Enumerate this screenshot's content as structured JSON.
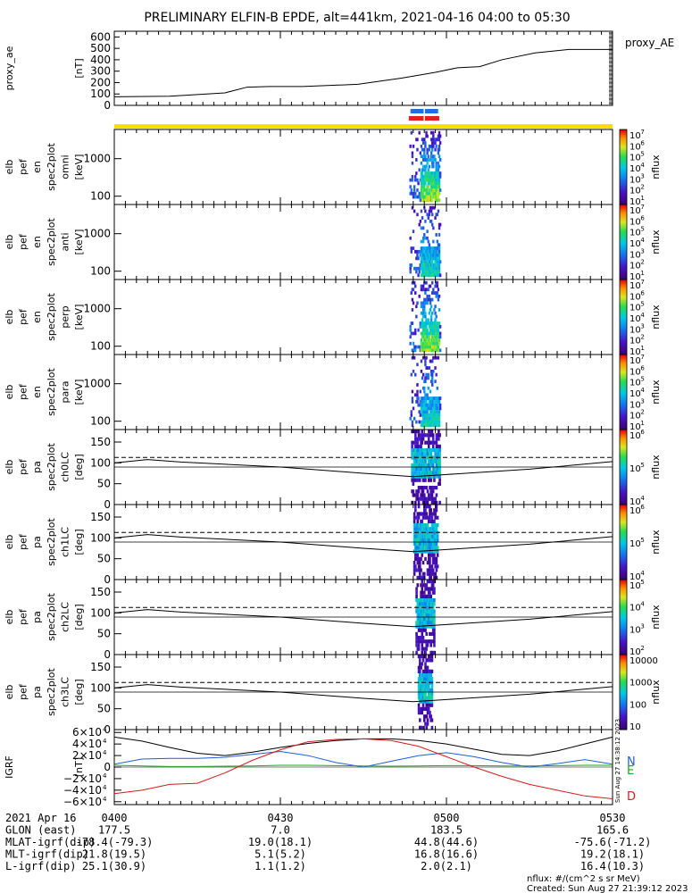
{
  "title": "PRELIMINARY ELFIN-B EPDE, alt=441km, 2021-04-16 04:00 to 05:30",
  "colors": {
    "ae_line": "#000000",
    "sci_blue": "#1e6ee6",
    "sci_red": "#e61e1e",
    "orbit_yellow": "#ffdd00",
    "grf_north": "#1f5fd6",
    "grf_east": "#1aa81a",
    "grf_down": "#d71a1a"
  },
  "chart_data": [
    {
      "type": "line",
      "name": "proxy_ae",
      "title": "proxy_AE",
      "ylabel": [
        "proxy_ae",
        "[nT]"
      ],
      "ylim": [
        0,
        650
      ],
      "yticks": [
        0,
        100,
        200,
        300,
        400,
        500,
        600
      ],
      "ytick_labels": [
        "0",
        "100",
        "200",
        "300",
        "400",
        "500",
        "600"
      ],
      "x_minutes": [
        0,
        10,
        20,
        24,
        28,
        34,
        44,
        52,
        58,
        62,
        66,
        70,
        76,
        82,
        90
      ],
      "values": [
        75,
        80,
        110,
        160,
        165,
        165,
        185,
        240,
        290,
        330,
        340,
        400,
        460,
        490,
        490
      ]
    },
    {
      "type": "bar",
      "name": "science_zone_bars",
      "categories": [
        "blue",
        "red"
      ],
      "x_minutes": [
        [
          53.5,
          58.5
        ],
        [
          53.2,
          58.7
        ]
      ]
    },
    {
      "type": "heatmap",
      "name": "energy_spectrograms",
      "panels": [
        {
          "ylabel": [
            "elb",
            "pef",
            "en",
            "spec2plot",
            "omni",
            "[keV]"
          ],
          "yticks": [
            "100",
            "1000"
          ],
          "cbar_ticks": [
            "10",
            "10",
            "10",
            "10",
            "10",
            "10",
            "10"
          ],
          "cbar_exp": [
            "7",
            "6",
            "5",
            "4",
            "3",
            "2",
            "1"
          ],
          "cbar_label": "nflux"
        },
        {
          "ylabel": [
            "elb",
            "pef",
            "en",
            "spec2plot",
            "anti",
            "[keV]"
          ],
          "yticks": [
            "100",
            "1000"
          ],
          "cbar_ticks": [
            "10",
            "10",
            "10",
            "10",
            "10",
            "10",
            "10"
          ],
          "cbar_exp": [
            "7",
            "6",
            "5",
            "4",
            "3",
            "2",
            "1"
          ],
          "cbar_label": "nflux"
        },
        {
          "ylabel": [
            "elb",
            "pef",
            "en",
            "spec2plot",
            "perp",
            "[keV]"
          ],
          "yticks": [
            "100",
            "1000"
          ],
          "cbar_ticks": [
            "10",
            "10",
            "10",
            "10",
            "10",
            "10",
            "10"
          ],
          "cbar_exp": [
            "7",
            "6",
            "5",
            "4",
            "3",
            "2",
            "1"
          ],
          "cbar_label": "nflux"
        },
        {
          "ylabel": [
            "elb",
            "pef",
            "en",
            "spec2plot",
            "para",
            "[keV]"
          ],
          "yticks": [
            "100",
            "1000"
          ],
          "cbar_ticks": [
            "10",
            "10",
            "10",
            "10",
            "10",
            "10",
            "10"
          ],
          "cbar_exp": [
            "7",
            "6",
            "5",
            "4",
            "3",
            "2",
            "1"
          ],
          "cbar_label": "nflux"
        }
      ],
      "x_range_minutes": [
        53,
        59
      ],
      "energy_keV_range": [
        60,
        6000
      ]
    },
    {
      "type": "heatmap",
      "name": "pitch_angle_spectrograms",
      "ylim": [
        0,
        180
      ],
      "yticks": [
        "0",
        "50",
        "100",
        "150"
      ],
      "loss_cone_dashed_deg": 113,
      "panels": [
        {
          "ylabel": [
            "elb",
            "pef",
            "pa",
            "spec2plot",
            "ch0LC",
            "[deg]"
          ],
          "cbar_ticks": [
            "10",
            "10",
            "10"
          ],
          "cbar_exp": [
            "6",
            "5",
            "4"
          ],
          "cbar_label": "nflux"
        },
        {
          "ylabel": [
            "elb",
            "pef",
            "pa",
            "spec2plot",
            "ch1LC",
            "[deg]"
          ],
          "cbar_ticks": [
            "10",
            "10",
            "10"
          ],
          "cbar_exp": [
            "6",
            "5",
            "4"
          ],
          "cbar_label": "nflux"
        },
        {
          "ylabel": [
            "elb",
            "pef",
            "pa",
            "spec2plot",
            "ch2LC",
            "[deg]"
          ],
          "cbar_ticks": [
            "10",
            "10",
            "10",
            "10"
          ],
          "cbar_exp": [
            "5",
            "4",
            "3",
            "2"
          ],
          "cbar_label": "nflux"
        },
        {
          "ylabel": [
            "elb",
            "pef",
            "pa",
            "spec2plot",
            "ch3LC",
            "[deg]"
          ],
          "cbar_ticks": [
            "10000",
            "1000",
            "100",
            "10"
          ],
          "cbar_exp": [
            "",
            "",
            "",
            ""
          ],
          "cbar_label": "nflux"
        }
      ],
      "loss_cone_x_minutes": [
        0,
        6,
        12,
        30,
        45,
        54,
        60,
        75,
        90
      ],
      "loss_cone_deg": [
        100,
        108,
        102,
        90,
        75,
        67,
        72,
        85,
        103
      ]
    },
    {
      "type": "line",
      "name": "igrf",
      "ylabel": [
        "IGRF",
        "[nT]"
      ],
      "ylim": [
        -65000,
        65000
      ],
      "ytick_labels": [
        "6×10",
        "4×10",
        "2×10",
        "0",
        "−2×10",
        "−4×10",
        "−6×10"
      ],
      "ytick_exp": "4",
      "x_minutes": [
        0,
        5,
        10,
        15,
        20,
        25,
        30,
        35,
        40,
        45,
        50,
        55,
        60,
        65,
        70,
        75,
        80,
        85,
        90
      ],
      "series": [
        {
          "name": "total",
          "values": [
            52000,
            45000,
            34000,
            24000,
            20000,
            26000,
            34000,
            41000,
            46000,
            49000,
            49000,
            46000,
            40000,
            31000,
            22000,
            20000,
            28000,
            40000,
            52000
          ]
        },
        {
          "name": "N",
          "values": [
            5000,
            14000,
            15000,
            15000,
            17000,
            22000,
            27000,
            20000,
            8000,
            0,
            10000,
            20000,
            25000,
            18000,
            8000,
            0,
            6000,
            13000,
            5000
          ]
        },
        {
          "name": "E",
          "values": [
            3000,
            2000,
            1000,
            1000,
            1500,
            2000,
            3000,
            3000,
            2500,
            2000,
            1500,
            2000,
            2500,
            2500,
            2000,
            2000,
            2500,
            3000,
            3000
          ]
        },
        {
          "name": "D",
          "values": [
            -46000,
            -40000,
            -30000,
            -28000,
            -10000,
            12000,
            30000,
            44000,
            48000,
            49000,
            46000,
            36000,
            18000,
            0,
            -16000,
            -30000,
            -40000,
            -50000,
            -55000
          ]
        }
      ],
      "legend": [
        "N",
        "E",
        "D"
      ]
    }
  ],
  "time_axis": {
    "tick_labels": [
      "0400",
      "0430",
      "0500",
      "0530"
    ],
    "tick_minutes": [
      0,
      30,
      60,
      90
    ],
    "minor_every_minutes": 2
  },
  "ephemeris": {
    "rows": [
      {
        "label": "2021 Apr 16",
        "values": [
          "0400",
          "0430",
          "0500",
          "0530"
        ]
      },
      {
        "label": "GLON (east)",
        "values": [
          "177.5",
          "7.0",
          "183.5",
          "165.6"
        ]
      },
      {
        "label": "MLAT-igrf(dip)",
        "values": [
          "-78.4(-79.3)",
          "19.0(18.1)",
          "44.8(44.6)",
          "-75.6(-71.2)"
        ]
      },
      {
        "label": "MLT-igrf(dip)",
        "values": [
          "21.8(19.5)",
          "5.1(5.2)",
          "16.8(16.6)",
          "19.2(18.1)"
        ]
      },
      {
        "label": "L-igrf(dip)",
        "values": [
          "25.1(30.9)",
          "1.1(1.2)",
          "2.0(2.1)",
          "16.4(10.3)"
        ]
      }
    ]
  },
  "footer": {
    "nflux_units": "nflux: #/(cm^2 s sr MeV)",
    "created": "Created: Sun Aug 27 21:39:12 2023",
    "side_stamp": "Sun Aug 27 14:38:12 2023"
  }
}
